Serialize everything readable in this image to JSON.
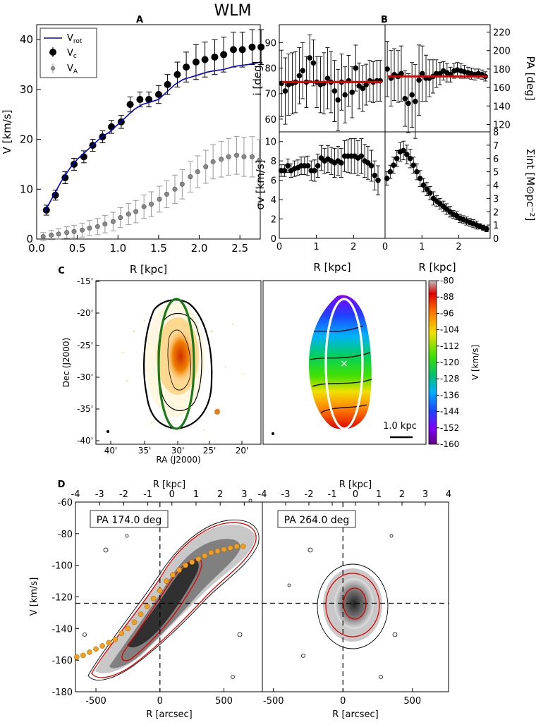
{
  "figure": {
    "title": "WLM",
    "panel_letters": [
      "A",
      "B",
      "C",
      "D"
    ]
  },
  "chart_data": [
    {
      "panel": "A",
      "type": "scatter",
      "xlabel": "R [kpc]",
      "ylabel": "V [km/s]",
      "xlim": [
        0,
        2.75
      ],
      "ylim": [
        0,
        43
      ],
      "xticks": [
        "0.0",
        "0.5",
        "1.0",
        "1.5",
        "2.0",
        "2.5"
      ],
      "yticks": [
        "0",
        "10",
        "20",
        "30",
        "40"
      ],
      "legend": {
        "position": "top-left",
        "entries": [
          "V",
          "V",
          "V"
        ],
        "subscripts": [
          "rot",
          "c",
          "A"
        ]
      },
      "series": [
        {
          "name": "Vrot",
          "style": "line",
          "color": "#0000cc",
          "x": [
            0.1,
            0.2,
            0.3,
            0.4,
            0.5,
            0.6,
            0.7,
            0.8,
            0.9,
            1.0,
            1.1,
            1.2,
            1.3,
            1.4,
            1.5,
            1.6,
            1.7,
            1.8,
            1.9,
            2.0,
            2.1,
            2.2,
            2.3,
            2.4,
            2.5,
            2.6,
            2.7,
            2.75
          ],
          "y": [
            5.5,
            8.5,
            11.5,
            14.0,
            16.0,
            17.5,
            19.0,
            20.5,
            21.5,
            23.0,
            24.5,
            26.0,
            27.0,
            27.5,
            28.0,
            29.5,
            31.0,
            32.0,
            32.5,
            33.0,
            33.5,
            33.8,
            34.0,
            34.5,
            34.8,
            35.0,
            35.3,
            35.5
          ]
        },
        {
          "name": "Vc",
          "style": "errorbar",
          "color": "#000000",
          "x": [
            0.12,
            0.23,
            0.35,
            0.46,
            0.58,
            0.69,
            0.81,
            0.92,
            1.04,
            1.15,
            1.27,
            1.38,
            1.5,
            1.61,
            1.73,
            1.84,
            1.96,
            2.07,
            2.19,
            2.3,
            2.42,
            2.53,
            2.65,
            2.76
          ],
          "y": [
            5.8,
            8.8,
            12.3,
            15.0,
            16.5,
            18.8,
            20.5,
            22.5,
            23.5,
            27.0,
            28.0,
            28.0,
            29.0,
            31.0,
            33.0,
            34.5,
            35.5,
            36.0,
            36.5,
            37.0,
            38.0,
            38.0,
            38.5,
            38.5
          ],
          "yerr": [
            1.0,
            1.0,
            1.2,
            1.2,
            1.2,
            1.2,
            1.2,
            1.3,
            1.3,
            1.5,
            1.5,
            1.5,
            1.8,
            2.0,
            2.5,
            3.0,
            3.5,
            3.5,
            3.5,
            3.5,
            3.5,
            3.5,
            3.5,
            3.5
          ]
        },
        {
          "name": "VA",
          "style": "errorbar",
          "color": "#888888",
          "x": [
            0.08,
            0.18,
            0.27,
            0.37,
            0.46,
            0.56,
            0.65,
            0.75,
            0.84,
            0.94,
            1.03,
            1.13,
            1.22,
            1.32,
            1.41,
            1.51,
            1.6,
            1.7,
            1.79,
            1.89,
            1.98,
            2.08,
            2.17,
            2.27,
            2.36,
            2.46,
            2.55,
            2.65,
            2.74
          ],
          "y": [
            0.5,
            0.8,
            1.0,
            1.3,
            1.5,
            1.8,
            2.2,
            2.5,
            3.0,
            3.5,
            4.3,
            5.0,
            5.5,
            6.5,
            7.0,
            8.0,
            9.0,
            10.0,
            11.0,
            12.5,
            13.5,
            14.5,
            15.5,
            16.0,
            16.5,
            16.8,
            16.5,
            16.5,
            15.8
          ]
        }
      ]
    },
    {
      "panel": "B-inclination",
      "type": "scatter",
      "ylabel": "i [deg]",
      "xlim": [
        0,
        2.8
      ],
      "ylim": [
        55,
        97
      ],
      "yticks": [
        "60",
        "70",
        "80",
        "90"
      ],
      "fit_value": 74.5,
      "x": [
        0.06,
        0.16,
        0.25,
        0.35,
        0.44,
        0.54,
        0.63,
        0.73,
        0.82,
        0.92,
        1.01,
        1.11,
        1.2,
        1.3,
        1.39,
        1.49,
        1.58,
        1.68,
        1.77,
        1.87,
        1.96,
        2.06,
        2.15,
        2.25,
        2.34,
        2.44,
        2.53,
        2.63,
        2.72
      ],
      "y": [
        74.0,
        71.0,
        73.5,
        74.0,
        74.5,
        77.0,
        79.0,
        74.5,
        84.0,
        82.0,
        74.5,
        73.5,
        74.0,
        76.0,
        74.5,
        71.0,
        67.5,
        74.5,
        69.5,
        75.0,
        70.5,
        80.0,
        73.0,
        72.0,
        73.5,
        75.0,
        74.5,
        75.0,
        75.0
      ],
      "yerr": [
        13,
        13,
        12,
        12,
        12,
        11,
        11,
        10,
        9,
        9,
        10,
        11,
        12,
        12,
        12,
        12,
        12,
        11,
        11,
        10,
        10,
        9,
        9,
        9,
        8,
        8,
        8,
        8,
        8
      ]
    },
    {
      "panel": "B-PA",
      "type": "scatter",
      "ylabel": "PA [deg]",
      "ylim": [
        112,
        228
      ],
      "yticks": [
        "120",
        "140",
        "160",
        "180",
        "200",
        "220"
      ],
      "fit_value": 172,
      "x": [
        0.06,
        0.16,
        0.25,
        0.35,
        0.44,
        0.54,
        0.63,
        0.73,
        0.82,
        0.92,
        1.01,
        1.11,
        1.2,
        1.3,
        1.39,
        1.49,
        1.58,
        1.68,
        1.77,
        1.87,
        1.96,
        2.06,
        2.15,
        2.25,
        2.34,
        2.44,
        2.53,
        2.63,
        2.72
      ],
      "y": [
        180.0,
        170.0,
        174.0,
        172.0,
        175.0,
        148.0,
        143.0,
        152.0,
        145.0,
        168.0,
        175.0,
        170.0,
        170.0,
        172.0,
        175.0,
        175.0,
        178.0,
        176.0,
        174.0,
        178.0,
        179.0,
        178.0,
        177.0,
        176.0,
        175.0,
        174.0,
        175.0,
        174.0,
        172.0
      ],
      "yerr": [
        30,
        30,
        28,
        28,
        30,
        30,
        32,
        35,
        40,
        38,
        30,
        25,
        20,
        18,
        15,
        12,
        10,
        10,
        8,
        8,
        8,
        8,
        7,
        6,
        6,
        6,
        5,
        5,
        5
      ]
    },
    {
      "panel": "B-dispersion",
      "type": "scatter",
      "xlabel": "R [kpc]",
      "ylabel": "σv [km/s]",
      "xlim": [
        0,
        2.8
      ],
      "ylim": [
        0,
        11
      ],
      "xticks": [
        "0",
        "1",
        "2"
      ],
      "yticks": [
        "0",
        "2",
        "4",
        "6",
        "8",
        "10"
      ],
      "x": [
        0.05,
        0.14,
        0.23,
        0.32,
        0.41,
        0.5,
        0.59,
        0.68,
        0.77,
        0.86,
        0.95,
        1.04,
        1.13,
        1.22,
        1.31,
        1.4,
        1.49,
        1.58,
        1.67,
        1.76,
        1.85,
        1.94,
        2.03,
        2.12,
        2.21,
        2.3,
        2.39,
        2.48,
        2.57,
        2.66
      ],
      "y": [
        7.0,
        7.0,
        7.5,
        7.0,
        7.2,
        7.3,
        7.5,
        7.5,
        7.5,
        7.0,
        7.0,
        7.5,
        8.3,
        8.0,
        8.2,
        8.0,
        7.8,
        8.0,
        7.8,
        8.5,
        8.5,
        8.5,
        8.5,
        8.3,
        8.5,
        8.0,
        7.8,
        7.5,
        6.5,
        6.0
      ],
      "yerr": [
        0.6,
        0.6,
        0.7,
        0.7,
        0.8,
        0.8,
        0.9,
        0.9,
        1.0,
        1.0,
        1.1,
        1.2,
        1.3,
        1.3,
        1.4,
        1.4,
        1.5,
        1.5,
        1.5,
        1.6,
        1.7,
        1.8,
        1.8,
        1.8,
        1.8,
        1.7,
        1.7,
        1.6,
        1.5,
        1.5
      ]
    },
    {
      "panel": "B-surface-density",
      "type": "scatter",
      "xlabel": "R [kpc]",
      "ylabel": "Σint [M⊙pc⁻²]",
      "ylim": [
        0,
        8
      ],
      "yticks": [
        "0",
        "1",
        "2",
        "3",
        "4",
        "5",
        "6",
        "7",
        "8"
      ],
      "x": [
        0.05,
        0.14,
        0.23,
        0.32,
        0.41,
        0.5,
        0.59,
        0.68,
        0.77,
        0.86,
        0.95,
        1.04,
        1.13,
        1.22,
        1.31,
        1.4,
        1.49,
        1.58,
        1.67,
        1.76,
        1.85,
        1.94,
        2.03,
        2.12,
        2.21,
        2.3,
        2.39,
        2.48,
        2.57,
        2.66,
        2.75
      ],
      "y": [
        4.5,
        5.0,
        5.5,
        6.0,
        6.5,
        6.6,
        6.3,
        6.0,
        5.5,
        5.0,
        4.5,
        4.0,
        3.7,
        3.4,
        3.0,
        2.8,
        2.6,
        2.4,
        2.2,
        2.0,
        1.8,
        1.7,
        1.5,
        1.4,
        1.3,
        1.2,
        1.1,
        1.0,
        0.9,
        0.8,
        0.7
      ],
      "yerr": [
        0.5,
        0.5,
        0.6,
        0.6,
        0.7,
        0.7,
        0.7,
        0.7,
        0.6,
        0.6,
        0.6,
        0.5,
        0.5,
        0.5,
        0.5,
        0.4,
        0.4,
        0.4,
        0.4,
        0.4,
        0.3,
        0.3,
        0.3,
        0.3,
        0.3,
        0.3,
        0.3,
        0.3,
        0.2,
        0.2,
        0.2
      ]
    },
    {
      "panel": "C",
      "type": "heatmap",
      "xlabel": "RA (J2000)",
      "ylabel": "Dec (J2000)",
      "xticks": [
        "40'",
        "35'",
        "30'",
        "25'",
        "20'"
      ],
      "yticks": [
        "-15'",
        "-20'",
        "-25'",
        "-30'",
        "-35'",
        "-40'"
      ],
      "colorbar": {
        "label": "V [km/s]",
        "ticks": [
          "-80",
          "-88",
          "-96",
          "-104",
          "-112",
          "-120",
          "-128",
          "-136",
          "-144",
          "-152",
          "-160"
        ],
        "range": [
          -160,
          -80
        ]
      },
      "scalebar_label": "1.0 kpc"
    },
    {
      "panel": "D-major",
      "type": "heatmap",
      "label": "PA 174.0 deg",
      "xlabel": "R [arcsec]",
      "ylabel": "V [km/s]",
      "top_xlabel": "R [kpc]",
      "xlim": [
        -800,
        800
      ],
      "ylim": [
        -180,
        -60
      ],
      "xticks": [
        "-500",
        "0",
        "500"
      ],
      "top_xticks": [
        "-4",
        "-3",
        "-2",
        "-1",
        "0",
        "1",
        "2",
        "3"
      ],
      "yticks": [
        "-60",
        "-80",
        "-100",
        "-120",
        "-140",
        "-160",
        "-180"
      ],
      "rotation_curve": {
        "x": [
          -650,
          -600,
          -550,
          -500,
          -450,
          -400,
          -350,
          -300,
          -250,
          -200,
          -150,
          -100,
          -50,
          0,
          50,
          100,
          150,
          200,
          250,
          300,
          350,
          400,
          450,
          500,
          550,
          600,
          650
        ],
        "y": [
          -158,
          -157,
          -155,
          -153,
          -151,
          -149,
          -147,
          -143,
          -140,
          -136,
          -131,
          -126,
          -121,
          -116,
          -110,
          -106,
          -103,
          -100,
          -98,
          -96,
          -94,
          -92,
          -91,
          -90,
          -89,
          -88,
          -88
        ]
      }
    },
    {
      "panel": "D-minor",
      "type": "heatmap",
      "label": "PA 264.0 deg",
      "xlabel": "R [arcsec]",
      "top_xlabel": "R [kpc]",
      "xlim": [
        -800,
        800
      ],
      "ylim": [
        -180,
        -60
      ],
      "xticks": [
        "-500",
        "0",
        "500"
      ],
      "top_xticks": [
        "-4",
        "-3",
        "-2",
        "-1",
        "0",
        "1",
        "2",
        "3",
        "4"
      ]
    }
  ]
}
